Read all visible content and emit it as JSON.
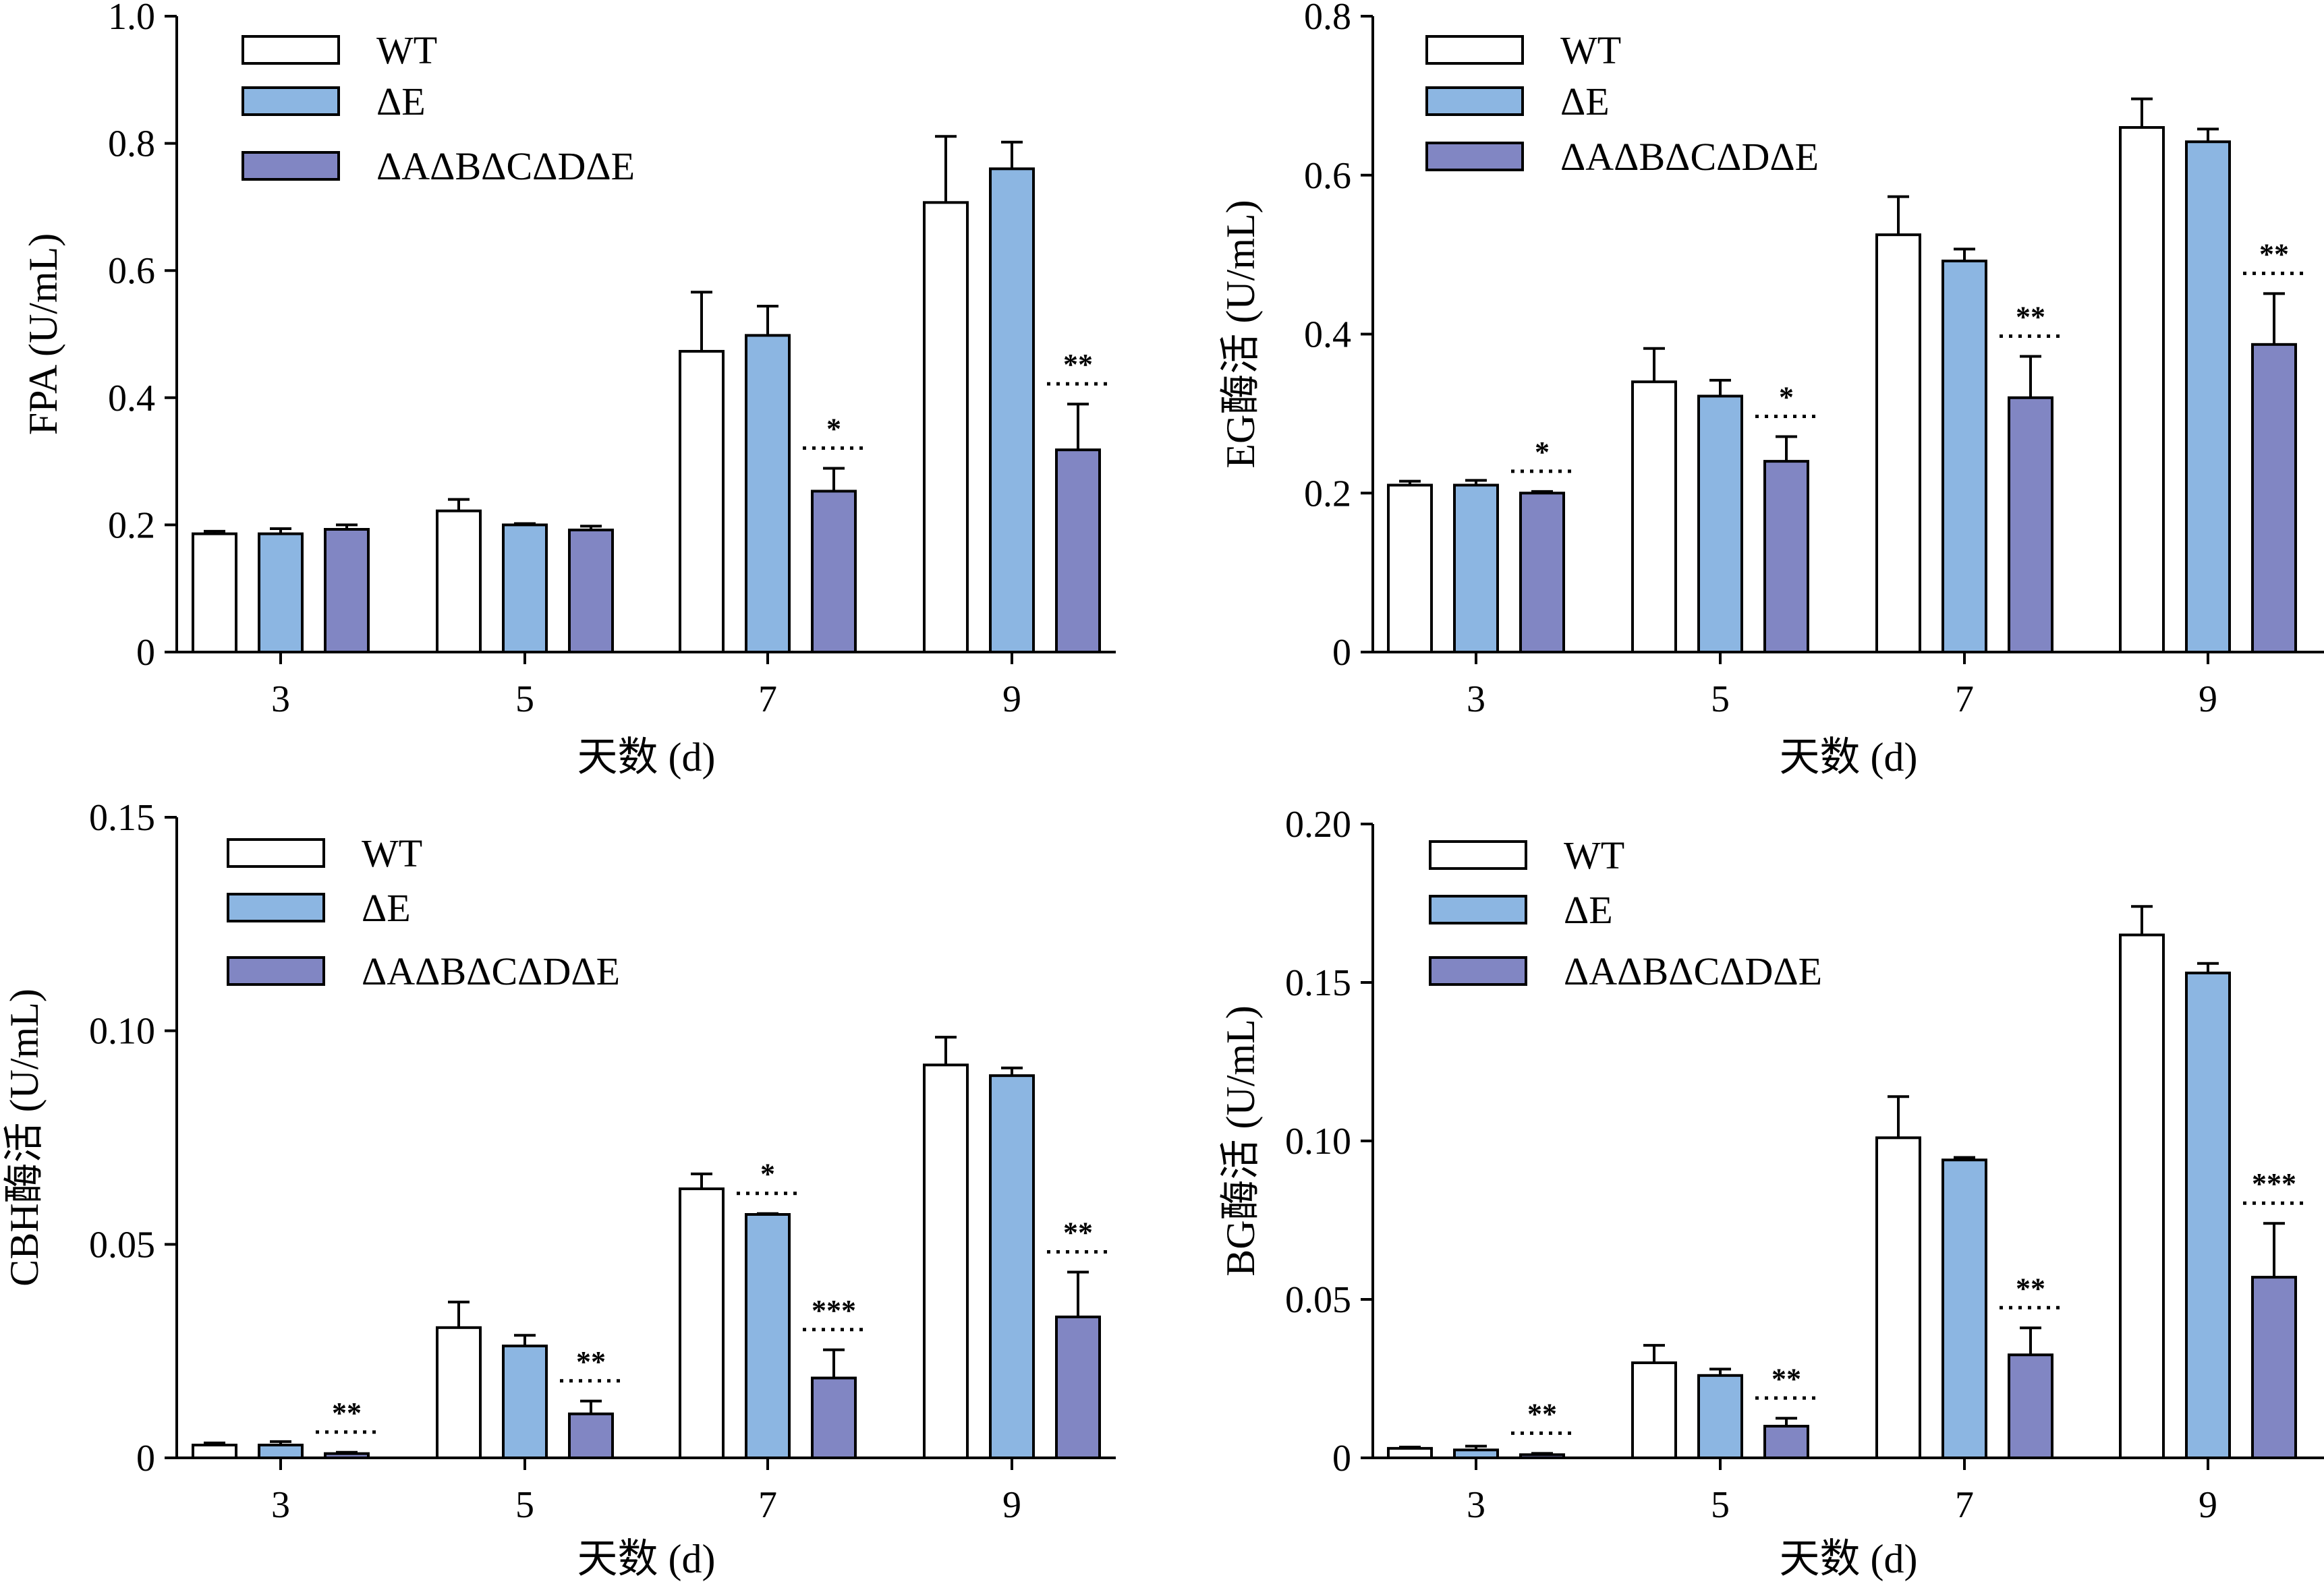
{
  "colors": {
    "wt": "#ffffff",
    "dE": "#8cb6e2",
    "multi": "#8186c3",
    "stroke": "#000000"
  },
  "chart_data": [
    {
      "type": "bar",
      "ylabel": "FPA (U/mL)",
      "xlabel": "天数 (d)",
      "categories": [
        "3",
        "5",
        "7",
        "9"
      ],
      "ylim": [
        0,
        1.0
      ],
      "yticks": [
        0,
        0.2,
        0.4,
        0.6,
        0.8,
        1.0
      ],
      "ytick_labels": [
        "0",
        "0.2",
        "0.4",
        "0.6",
        "0.8",
        "1.0"
      ],
      "legend_position": "top-left",
      "series": [
        {
          "name": "WT",
          "color_key": "wt",
          "values": [
            0.186,
            0.222,
            0.473,
            0.707
          ],
          "errors": [
            0.004,
            0.018,
            0.093,
            0.104
          ]
        },
        {
          "name": "ΔE",
          "color_key": "dE",
          "values": [
            0.186,
            0.2,
            0.498,
            0.76
          ],
          "errors": [
            0.008,
            0.002,
            0.046,
            0.042
          ]
        },
        {
          "name": "ΔAΔBΔCΔDΔE",
          "color_key": "multi",
          "values": [
            0.193,
            0.192,
            0.253,
            0.318
          ],
          "errors": [
            0.007,
            0.006,
            0.036,
            0.072
          ]
        }
      ],
      "significance": [
        {
          "category": "7",
          "label": "*"
        },
        {
          "category": "9",
          "label": "**"
        }
      ]
    },
    {
      "type": "bar",
      "ylabel": "EG酶活 (U/mL)",
      "xlabel": "天数 (d)",
      "categories": [
        "3",
        "5",
        "7",
        "9"
      ],
      "ylim": [
        0,
        0.8
      ],
      "yticks": [
        0,
        0.2,
        0.4,
        0.6,
        0.8
      ],
      "ytick_labels": [
        "0",
        "0.2",
        "0.4",
        "0.6",
        "0.8"
      ],
      "legend_position": "top-left",
      "series": [
        {
          "name": "WT",
          "color_key": "wt",
          "values": [
            0.21,
            0.34,
            0.525,
            0.66
          ],
          "errors": [
            0.005,
            0.042,
            0.048,
            0.036
          ]
        },
        {
          "name": "ΔE",
          "color_key": "dE",
          "values": [
            0.21,
            0.322,
            0.492,
            0.642
          ],
          "errors": [
            0.006,
            0.02,
            0.015,
            0.016
          ]
        },
        {
          "name": "ΔAΔBΔCΔDΔE",
          "color_key": "multi",
          "values": [
            0.2,
            0.24,
            0.32,
            0.387
          ],
          "errors": [
            0.002,
            0.031,
            0.052,
            0.064
          ]
        }
      ],
      "significance": [
        {
          "category": "3",
          "label": "*"
        },
        {
          "category": "5",
          "label": "*"
        },
        {
          "category": "7",
          "label": "**"
        },
        {
          "category": "9",
          "label": "**"
        }
      ]
    },
    {
      "type": "bar",
      "ylabel": "CBH酶活 (U/mL)",
      "xlabel": "天数 (d)",
      "categories": [
        "3",
        "5",
        "7",
        "9"
      ],
      "ylim": [
        0,
        0.15
      ],
      "yticks": [
        0,
        0.05,
        0.1,
        0.15
      ],
      "ytick_labels": [
        "0",
        "0.05",
        "0.10",
        "0.15"
      ],
      "legend_position": "top-left",
      "series": [
        {
          "name": "WT",
          "color_key": "wt",
          "values": [
            0.003,
            0.0305,
            0.063,
            0.092
          ],
          "errors": [
            0.0005,
            0.006,
            0.0035,
            0.0065
          ]
        },
        {
          "name": "ΔE",
          "color_key": "dE",
          "values": [
            0.003,
            0.0262,
            0.057,
            0.0895
          ],
          "errors": [
            0.0008,
            0.0025,
            0.0002,
            0.0018
          ]
        },
        {
          "name": "ΔAΔBΔCΔDΔE",
          "color_key": "multi",
          "values": [
            0.001,
            0.0103,
            0.0187,
            0.033
          ],
          "errors": [
            0.0003,
            0.003,
            0.0066,
            0.0105
          ]
        }
      ],
      "significance": [
        {
          "category": "3",
          "label": "**"
        },
        {
          "category": "5",
          "label": "**"
        },
        {
          "category": "7",
          "label": "*",
          "target": "ΔE"
        },
        {
          "category": "7",
          "label": "***"
        },
        {
          "category": "9",
          "label": "**"
        }
      ]
    },
    {
      "type": "bar",
      "ylabel": "BG酶活 (U/mL)",
      "xlabel": "天数 (d)",
      "categories": [
        "3",
        "5",
        "7",
        "9"
      ],
      "ylim": [
        0,
        0.2
      ],
      "yticks": [
        0,
        0.05,
        0.1,
        0.15,
        0.2
      ],
      "ytick_labels": [
        "0",
        "0.05",
        "0.10",
        "0.15",
        "0.20"
      ],
      "legend_position": "top-left",
      "series": [
        {
          "name": "WT",
          "color_key": "wt",
          "values": [
            0.003,
            0.03,
            0.101,
            0.165
          ],
          "errors": [
            0.0004,
            0.0055,
            0.013,
            0.009
          ]
        },
        {
          "name": "ΔE",
          "color_key": "dE",
          "values": [
            0.0025,
            0.026,
            0.094,
            0.153
          ],
          "errors": [
            0.0012,
            0.002,
            0.0008,
            0.003
          ]
        },
        {
          "name": "ΔAΔBΔCΔDΔE",
          "color_key": "multi",
          "values": [
            0.001,
            0.01,
            0.0325,
            0.057
          ],
          "errors": [
            0.0004,
            0.0025,
            0.0085,
            0.017
          ]
        }
      ],
      "significance": [
        {
          "category": "3",
          "label": "**"
        },
        {
          "category": "5",
          "label": "**"
        },
        {
          "category": "7",
          "label": "**"
        },
        {
          "category": "9",
          "label": "***"
        }
      ]
    }
  ]
}
